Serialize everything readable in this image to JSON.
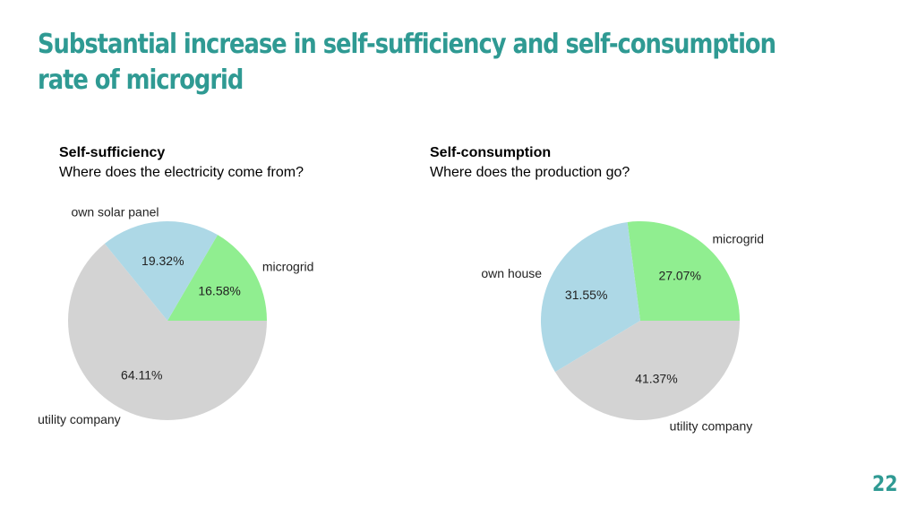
{
  "slide": {
    "title": "Substantial increase in self-sufficiency and self-consumption rate of microgrid",
    "page_number": "22"
  },
  "colors": {
    "title": "#2f9a93",
    "solar": "#add8e6",
    "microgrid": "#90ee90",
    "utility": "#d3d3d3"
  },
  "chart_data": [
    {
      "type": "pie",
      "title": "Self-sufficiency",
      "subtitle": "Where does the electricity come from?",
      "slices": [
        {
          "label": "microgrid",
          "value": 16.58,
          "value_label": "16.58%",
          "color": "#90ee90"
        },
        {
          "label": "own solar panel",
          "value": 19.32,
          "value_label": "19.32%",
          "color": "#add8e6"
        },
        {
          "label": "utility company",
          "value": 64.11,
          "value_label": "64.11%",
          "color": "#d3d3d3"
        }
      ]
    },
    {
      "type": "pie",
      "title": "Self-consumption",
      "subtitle": "Where does the production go?",
      "slices": [
        {
          "label": "microgrid",
          "value": 27.07,
          "value_label": "27.07%",
          "color": "#90ee90"
        },
        {
          "label": "own house",
          "value": 31.55,
          "value_label": "31.55%",
          "color": "#add8e6"
        },
        {
          "label": "utility company",
          "value": 41.37,
          "value_label": "41.37%",
          "color": "#d3d3d3"
        }
      ]
    }
  ]
}
